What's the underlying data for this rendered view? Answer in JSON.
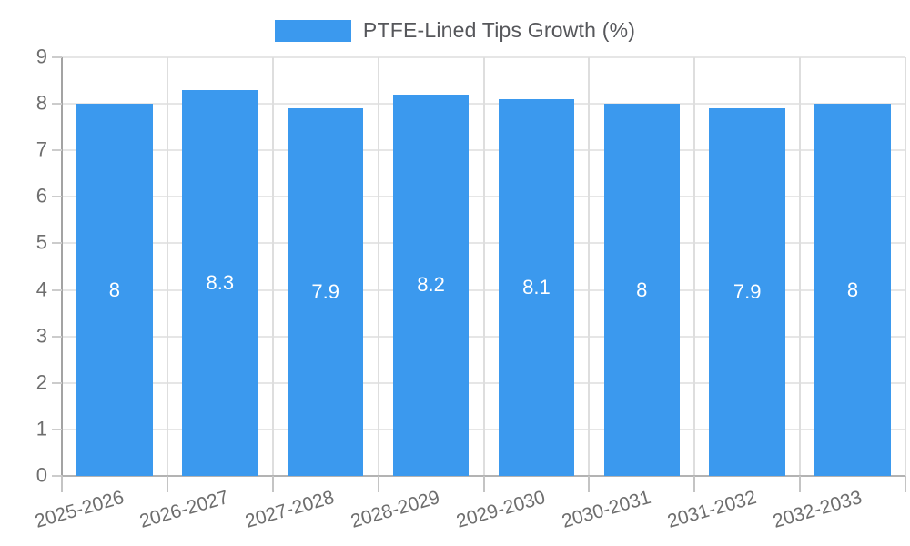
{
  "chart_data": {
    "type": "bar",
    "title": "",
    "legend": {
      "label": "PTFE-Lined Tips Growth (%)",
      "position": "top"
    },
    "categories": [
      "2025-2026",
      "2026-2027",
      "2027-2028",
      "2028-2029",
      "2029-2030",
      "2030-2031",
      "2031-2032",
      "2032-2033"
    ],
    "series": [
      {
        "name": "PTFE-Lined Tips Growth (%)",
        "values": [
          8,
          8.3,
          7.9,
          8.2,
          8.1,
          8,
          7.9,
          8
        ]
      }
    ],
    "value_labels": [
      "8",
      "8.3",
      "7.9",
      "8.2",
      "8.1",
      "8",
      "7.9",
      "8"
    ],
    "xlabel": "",
    "ylabel": "",
    "ylim": [
      0,
      9
    ],
    "yticks": [
      0,
      1,
      2,
      3,
      4,
      5,
      6,
      7,
      8,
      9
    ],
    "grid": true
  },
  "colors": {
    "accent": "#3b99ee",
    "value_label": "#ffffff",
    "axis_text": "#6e6e6e",
    "legend_text": "#56575b",
    "grid": "#e6e6e6",
    "vgrid": "#dedede",
    "axis_line": "#a3a3a3",
    "baseline": "#b3b3b3",
    "tick": "#cccccc",
    "tick2": "#c4c4c4"
  }
}
